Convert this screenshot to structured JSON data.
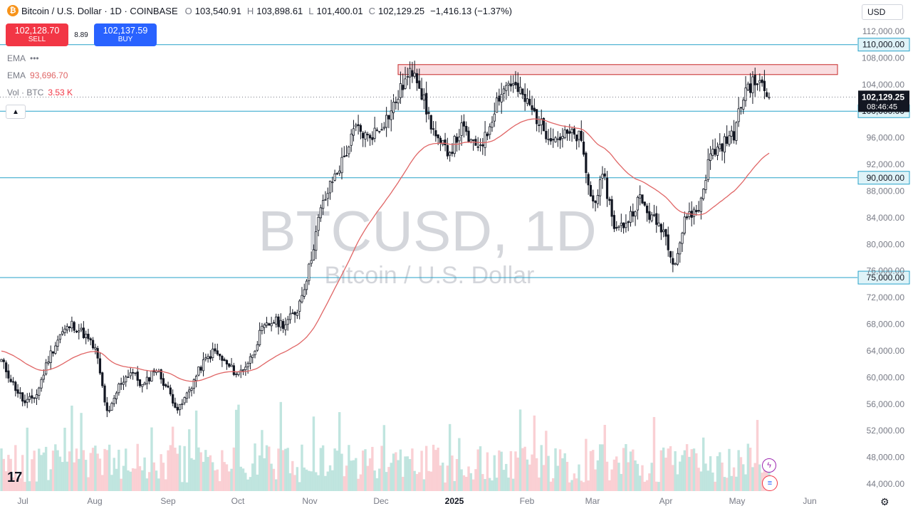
{
  "header": {
    "coin_icon": "bitcoin-icon",
    "symbol": "Bitcoin / U.S. Dollar · 1D · COINBASE",
    "open_label": "O",
    "open": "103,540.91",
    "high_label": "H",
    "high": "103,898.61",
    "low_label": "L",
    "low": "101,400.01",
    "close_label": "C",
    "close": "102,129.25",
    "change": "−1,416.13 (−1.37%)"
  },
  "trade": {
    "sell_price": "102,128.70",
    "sell_label": "SELL",
    "spread": "8.89",
    "buy_price": "102,137.59",
    "buy_label": "BUY"
  },
  "indicators": {
    "ema1_label": "EMA",
    "ema1_value": "•••",
    "ema2_label": "EMA",
    "ema2_value": "93,696.70",
    "vol_label": "Vol · BTC",
    "vol_value": "3.53 K"
  },
  "currency": "USD",
  "watermark": {
    "symbol": "BTCUSD, 1D",
    "name": "Bitcoin / U.S. Dollar"
  },
  "last_price": {
    "price": "102,129.25",
    "countdown": "08:46:45"
  },
  "colors": {
    "up": "#089981",
    "down": "#f23645",
    "ema": "#e06666",
    "hline": "#26a2c9",
    "resistance_fill": "#f8d7da",
    "resistance_stroke": "#c62828"
  },
  "chart_data": {
    "type": "candlestick",
    "title": "Bitcoin / U.S. Dollar",
    "timeframe": "1D",
    "exchange": "COINBASE",
    "ylim": [
      43000,
      114000
    ],
    "y_ticks": [
      "112,000.00",
      "108,000.00",
      "104,000.00",
      "96,000.00",
      "92,000.00",
      "88,000.00",
      "84,000.00",
      "80,000.00",
      "76,000.00",
      "72,000.00",
      "68,000.00",
      "64,000.00",
      "60,000.00",
      "56,000.00",
      "52,000.00",
      "48,000.00",
      "44,000.00"
    ],
    "x_ticks": [
      "Jul",
      "Aug",
      "Sep",
      "Oct",
      "Nov",
      "Dec",
      "2025",
      "Feb",
      "Mar",
      "Apr",
      "May",
      "Jun"
    ],
    "horizontal_levels": [
      {
        "value": 110000,
        "label": "110,000.00"
      },
      {
        "value": 100000,
        "label": "100,000.00"
      },
      {
        "value": 90000,
        "label": "90,000.00"
      },
      {
        "value": 75000,
        "label": "75,000.00"
      }
    ],
    "resistance_zone": {
      "from": 105500,
      "to": 107000,
      "start": "Dec",
      "end": "Jun"
    },
    "ema_last": 93696.7,
    "volume_last": "3.53 K",
    "price_path": [
      [
        "Jul",
        62500
      ],
      [
        "Jul",
        59000
      ],
      [
        "Jul",
        56000
      ],
      [
        "Jul",
        57500
      ],
      [
        "Jul",
        63000
      ],
      [
        "Jul",
        66500
      ],
      [
        "Jul",
        68000
      ],
      [
        "Jul",
        66500
      ],
      [
        "Aug",
        64000
      ],
      [
        "Aug",
        54000
      ],
      [
        "Aug",
        59000
      ],
      [
        "Aug",
        61000
      ],
      [
        "Aug",
        58500
      ],
      [
        "Aug",
        61500
      ],
      [
        "Sep",
        58500
      ],
      [
        "Sep",
        55000
      ],
      [
        "Sep",
        58500
      ],
      [
        "Sep",
        62000
      ],
      [
        "Sep",
        64000
      ],
      [
        "Oct",
        62000
      ],
      [
        "Oct",
        60500
      ],
      [
        "Oct",
        62500
      ],
      [
        "Oct",
        67000
      ],
      [
        "Oct",
        68500
      ],
      [
        "Nov",
        68000
      ],
      [
        "Nov",
        70000
      ],
      [
        "Nov",
        76000
      ],
      [
        "Nov",
        85000
      ],
      [
        "Nov",
        89500
      ],
      [
        "Nov",
        93000
      ],
      [
        "Nov",
        97500
      ],
      [
        "Dec",
        96000
      ],
      [
        "Dec",
        97500
      ],
      [
        "Dec",
        100000
      ],
      [
        "Dec",
        104000
      ],
      [
        "Dec",
        106500
      ],
      [
        "Dec",
        100000
      ],
      [
        "Dec",
        95000
      ],
      [
        "2025",
        94000
      ],
      [
        "2025",
        97500
      ],
      [
        "2025",
        94500
      ],
      [
        "2025",
        96000
      ],
      [
        "2025",
        102000
      ],
      [
        "2025",
        104500
      ],
      [
        "2025",
        102500
      ],
      [
        "Feb",
        100000
      ],
      [
        "Feb",
        97000
      ],
      [
        "Feb",
        96000
      ],
      [
        "Feb",
        96500
      ],
      [
        "Feb",
        96000
      ],
      [
        "Mar",
        86000
      ],
      [
        "Mar",
        90000
      ],
      [
        "Mar",
        82000
      ],
      [
        "Mar",
        83500
      ],
      [
        "Mar",
        87000
      ],
      [
        "Apr",
        84000
      ],
      [
        "Apr",
        82500
      ],
      [
        "Apr",
        77000
      ],
      [
        "Apr",
        84500
      ],
      [
        "Apr",
        85000
      ],
      [
        "May",
        93500
      ],
      [
        "May",
        95000
      ],
      [
        "May",
        96500
      ],
      [
        "May",
        103500
      ],
      [
        "May",
        104500
      ],
      [
        "May",
        102129.25
      ]
    ]
  }
}
